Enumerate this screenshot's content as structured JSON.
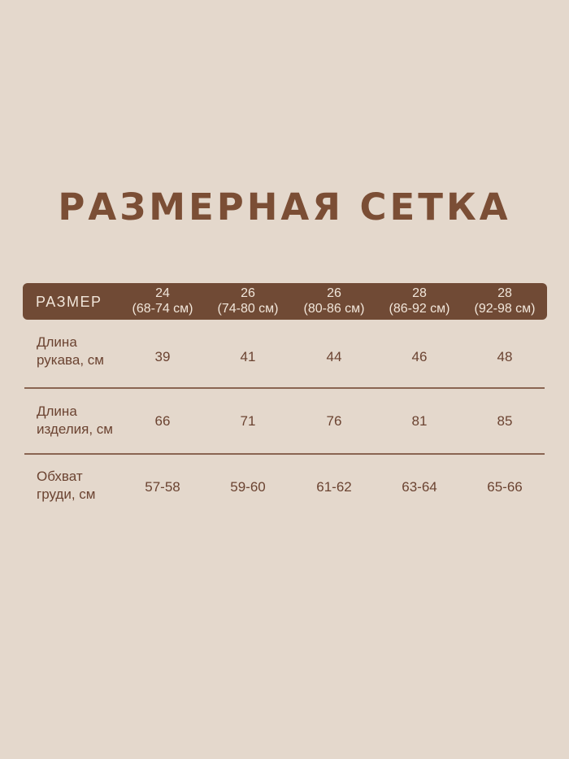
{
  "title": "РАЗМЕРНАЯ СЕТКА",
  "colors": {
    "background": "#e4d8cc",
    "accent": "#704a35",
    "text": "#6b4331"
  },
  "table": {
    "header_label": "РАЗМЕР",
    "columns": [
      {
        "size": "24",
        "range": "(68-74 см)"
      },
      {
        "size": "26",
        "range": "(74-80 см)"
      },
      {
        "size": "26",
        "range": "(80-86 см)"
      },
      {
        "size": "28",
        "range": "(86-92 см)"
      },
      {
        "size": "28",
        "range": "(92-98 см)"
      }
    ],
    "rows": [
      {
        "label1": "Длина",
        "label2": "рукава, см",
        "values": [
          "39",
          "41",
          "44",
          "46",
          "48"
        ]
      },
      {
        "label1": "Длина",
        "label2": "изделия, см",
        "values": [
          "66",
          "71",
          "76",
          "81",
          "85"
        ]
      },
      {
        "label1": "Обхват",
        "label2": "груди, см",
        "values": [
          "57-58",
          "59-60",
          "61-62",
          "63-64",
          "65-66"
        ]
      }
    ]
  }
}
